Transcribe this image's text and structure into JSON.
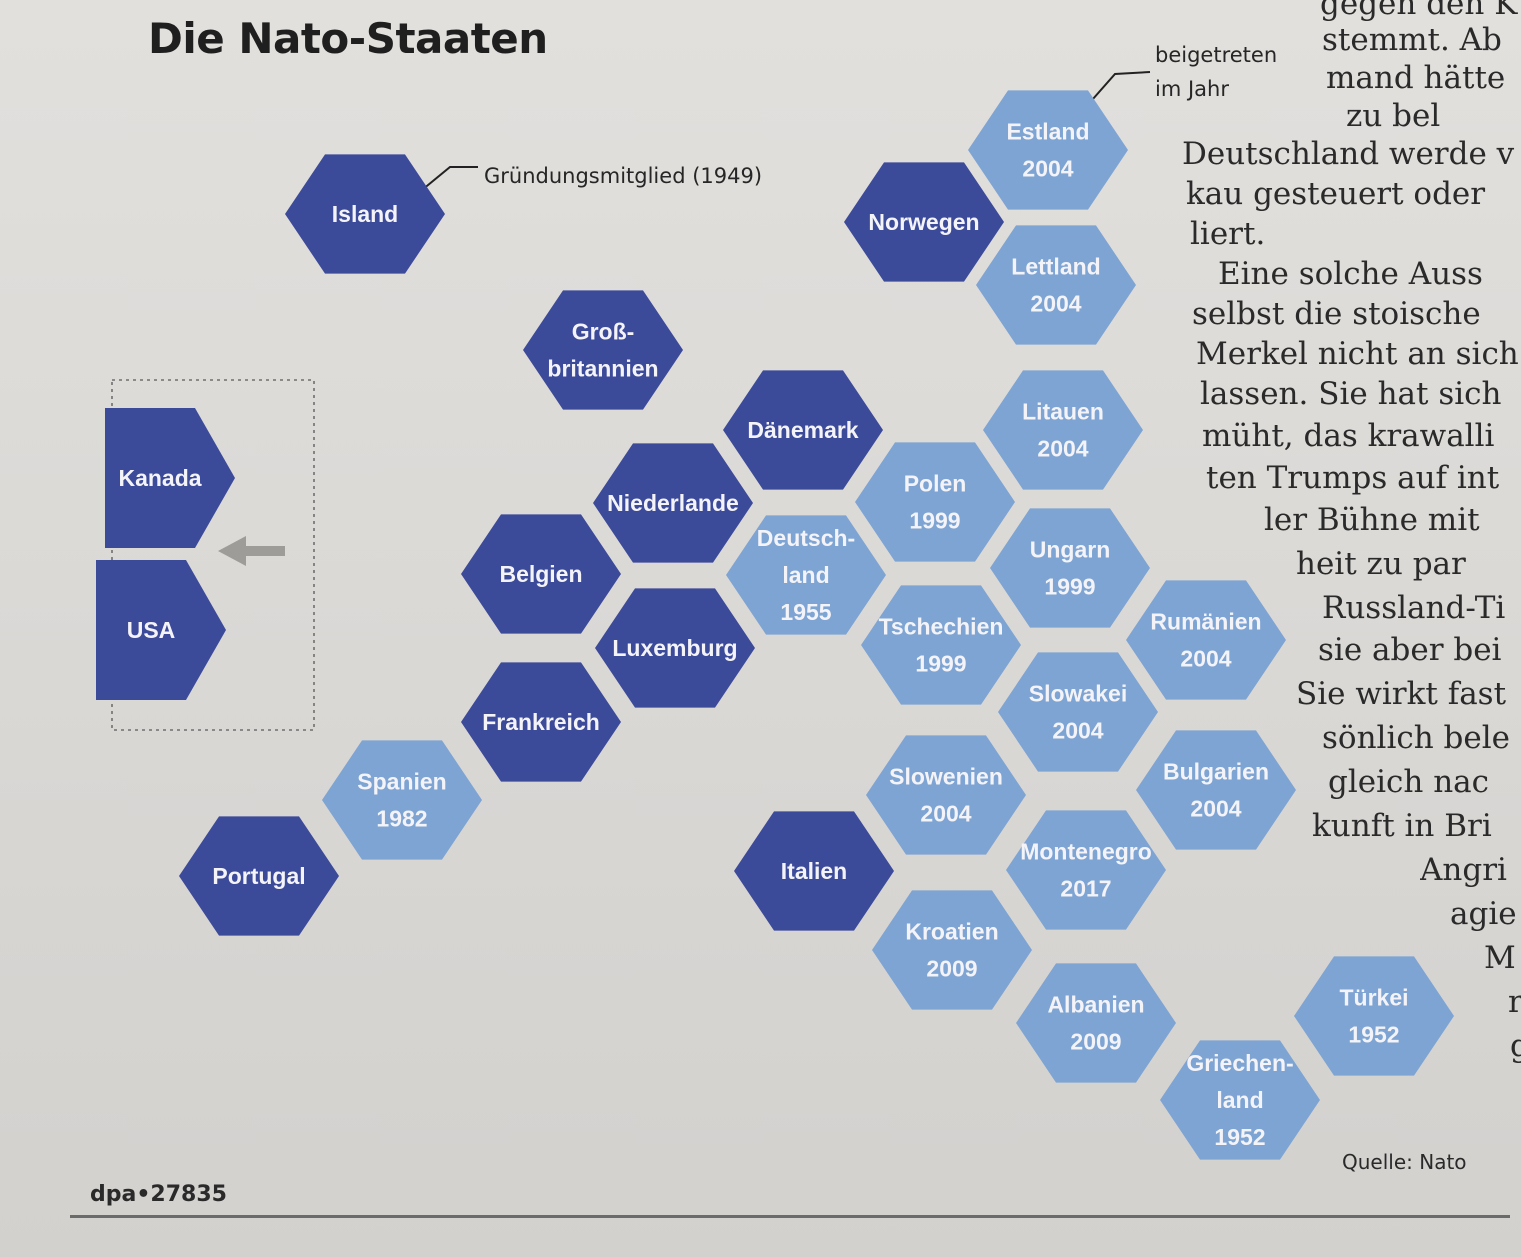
{
  "title": "Die Nato-Staaten",
  "legend": {
    "founding": "Gründungsmitglied (1949)",
    "joined_line1": "beigetreten",
    "joined_line2": "im Jahr"
  },
  "colors": {
    "founding": "#3c4a9a",
    "joined": "#7ea4d3"
  },
  "countries": [
    {
      "lines": [
        "Island"
      ],
      "type": "founding"
    },
    {
      "lines": [
        "Norwegen"
      ],
      "type": "founding"
    },
    {
      "lines": [
        "Estland",
        "2004"
      ],
      "type": "joined"
    },
    {
      "lines": [
        "Lettland",
        "2004"
      ],
      "type": "joined"
    },
    {
      "lines": [
        "Litauen",
        "2004"
      ],
      "type": "joined"
    },
    {
      "lines": [
        "Groß-",
        "britannien"
      ],
      "type": "founding"
    },
    {
      "lines": [
        "Dänemark"
      ],
      "type": "founding"
    },
    {
      "lines": [
        "Niederlande"
      ],
      "type": "founding"
    },
    {
      "lines": [
        "Belgien"
      ],
      "type": "founding"
    },
    {
      "lines": [
        "Luxemburg"
      ],
      "type": "founding"
    },
    {
      "lines": [
        "Frankreich"
      ],
      "type": "founding"
    },
    {
      "lines": [
        "Deutsch-",
        "land",
        "1955"
      ],
      "type": "joined"
    },
    {
      "lines": [
        "Polen",
        "1999"
      ],
      "type": "joined"
    },
    {
      "lines": [
        "Ungarn",
        "1999"
      ],
      "type": "joined"
    },
    {
      "lines": [
        "Tschechien",
        "1999"
      ],
      "type": "joined"
    },
    {
      "lines": [
        "Rumänien",
        "2004"
      ],
      "type": "joined"
    },
    {
      "lines": [
        "Slowakei",
        "2004"
      ],
      "type": "joined"
    },
    {
      "lines": [
        "Bulgarien",
        "2004"
      ],
      "type": "joined"
    },
    {
      "lines": [
        "Slowenien",
        "2004"
      ],
      "type": "joined"
    },
    {
      "lines": [
        "Montenegro",
        "2017"
      ],
      "type": "joined"
    },
    {
      "lines": [
        "Kroatien",
        "2009"
      ],
      "type": "joined"
    },
    {
      "lines": [
        "Albanien",
        "2009"
      ],
      "type": "joined"
    },
    {
      "lines": [
        "Griechen-",
        "land",
        "1952"
      ],
      "type": "joined"
    },
    {
      "lines": [
        "Türkei",
        "1952"
      ],
      "type": "joined"
    },
    {
      "lines": [
        "Spanien",
        "1982"
      ],
      "type": "joined"
    },
    {
      "lines": [
        "Portugal"
      ],
      "type": "founding"
    },
    {
      "lines": [
        "Italien"
      ],
      "type": "founding"
    },
    {
      "lines": [
        "Kanada"
      ],
      "type": "founding"
    },
    {
      "lines": [
        "USA"
      ],
      "type": "founding"
    }
  ],
  "article_lines": [
    "gegen den K",
    "stemmt. Ab",
    "mand hätte",
    "zu bel",
    "Deutschland werde v",
    "kau gesteuert oder",
    "liert.",
    "Eine solche Auss",
    "selbst die stoische",
    "Merkel nicht an sich",
    "lassen. Sie hat sich",
    "müht, das krawalli",
    "ten Trumps auf int",
    "ler Bühne mit",
    "heit zu par",
    "Russland-Ti",
    "sie aber bei",
    "Sie wirkt fast",
    "sönlich bele",
    "gleich nac",
    "kunft in Bri",
    "Angri",
    "agie",
    "M",
    "r",
    "g"
  ],
  "footer": {
    "source_code": "dpa•27835",
    "credit": "Quelle: Nato"
  }
}
